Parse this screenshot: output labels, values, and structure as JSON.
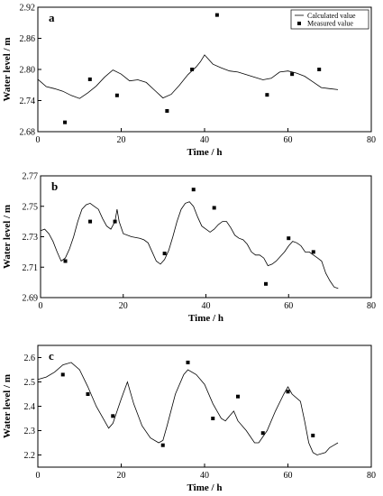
{
  "chart_data": [
    {
      "type": "line",
      "panel_label": "a",
      "xlabel": "Time / h",
      "ylabel": "Water level / m",
      "xlim": [
        0,
        80
      ],
      "ylim": [
        2.68,
        2.92
      ],
      "x_ticks": [
        "0",
        "20",
        "40",
        "60",
        "80"
      ],
      "y_ticks": [
        "2.68",
        "2.74",
        "2.80",
        "2.86",
        "2.92"
      ],
      "legend": {
        "position": "top-right",
        "entries": [
          "Calculated value",
          "Measured value"
        ]
      },
      "series": [
        {
          "name": "Calculated value",
          "style": "line",
          "x": [
            0,
            2,
            4,
            6,
            8,
            10,
            12,
            14,
            16,
            18,
            20,
            22,
            24,
            26,
            28,
            30,
            32,
            34,
            36,
            38,
            39,
            40,
            42,
            44,
            46,
            48,
            50,
            52,
            54,
            56,
            58,
            60,
            62,
            64,
            66,
            68,
            70,
            72
          ],
          "y": [
            2.781,
            2.767,
            2.763,
            2.758,
            2.75,
            2.744,
            2.755,
            2.768,
            2.785,
            2.799,
            2.791,
            2.778,
            2.78,
            2.775,
            2.76,
            2.745,
            2.752,
            2.77,
            2.79,
            2.805,
            2.815,
            2.828,
            2.81,
            2.803,
            2.797,
            2.795,
            2.79,
            2.785,
            2.78,
            2.783,
            2.795,
            2.797,
            2.793,
            2.787,
            2.776,
            2.765,
            2.763,
            2.761
          ]
        },
        {
          "name": "Measured value",
          "style": "marker",
          "x": [
            6.5,
            12.5,
            19,
            31,
            37,
            43,
            55,
            61,
            67.5
          ],
          "y": [
            2.698,
            2.781,
            2.75,
            2.72,
            2.8,
            2.905,
            2.751,
            2.791,
            2.8
          ]
        }
      ]
    },
    {
      "type": "line",
      "panel_label": "b",
      "xlabel": "Time / h",
      "ylabel": "Water level / m",
      "xlim": [
        0,
        80
      ],
      "ylim": [
        2.69,
        2.77
      ],
      "x_ticks": [
        "0",
        "20",
        "40",
        "60",
        "80"
      ],
      "y_ticks": [
        "2.69",
        "2.71",
        "2.73",
        "2.75",
        "2.77"
      ],
      "series": [
        {
          "name": "Calculated value",
          "style": "line",
          "x": [
            0,
            1,
            2,
            3,
            4,
            5,
            6,
            7,
            8,
            9,
            10,
            11,
            12,
            13,
            14,
            15,
            16,
            17,
            18,
            18.5,
            19,
            20,
            22,
            24,
            25,
            26,
            27,
            28,
            29,
            30,
            31,
            32,
            33,
            34,
            35,
            36,
            37,
            38,
            39,
            40,
            41,
            42,
            43,
            44,
            45,
            46,
            47,
            48,
            49,
            50,
            51,
            52,
            53,
            54,
            55,
            56,
            57,
            58,
            59,
            60,
            61,
            62,
            63,
            64,
            65,
            66,
            67,
            68,
            69,
            70,
            71,
            72
          ],
          "y": [
            2.734,
            2.735,
            2.732,
            2.727,
            2.72,
            2.714,
            2.716,
            2.722,
            2.73,
            2.74,
            2.748,
            2.751,
            2.752,
            2.75,
            2.748,
            2.742,
            2.737,
            2.735,
            2.74,
            2.748,
            2.74,
            2.732,
            2.73,
            2.729,
            2.728,
            2.726,
            2.72,
            2.714,
            2.712,
            2.715,
            2.721,
            2.73,
            2.74,
            2.748,
            2.752,
            2.753,
            2.75,
            2.743,
            2.737,
            2.735,
            2.733,
            2.735,
            2.738,
            2.74,
            2.74,
            2.736,
            2.731,
            2.729,
            2.728,
            2.725,
            2.72,
            2.718,
            2.718,
            2.716,
            2.711,
            2.712,
            2.714,
            2.717,
            2.72,
            2.724,
            2.727,
            2.726,
            2.724,
            2.72,
            2.72,
            2.718,
            2.716,
            2.714,
            2.706,
            2.701,
            2.697,
            2.696
          ]
        },
        {
          "name": "Measured value",
          "style": "marker",
          "x": [
            6,
            12,
            18,
            30,
            37,
            42,
            54.5,
            60,
            66
          ],
          "y": [
            2.714,
            2.74,
            2.74,
            2.719,
            2.761,
            2.749,
            2.699,
            2.729,
            2.72
          ]
        }
      ]
    },
    {
      "type": "line",
      "panel_label": "c",
      "xlabel": "Time / h",
      "ylabel": "Water level / m",
      "xlim": [
        0,
        80
      ],
      "ylim": [
        2.15,
        2.65
      ],
      "x_ticks": [
        "0",
        "20",
        "40",
        "60",
        "80"
      ],
      "y_ticks": [
        "2.2",
        "2.3",
        "2.4",
        "2.5",
        "2.6"
      ],
      "series": [
        {
          "name": "Calculated value",
          "style": "line",
          "x": [
            0,
            2,
            4,
            6,
            8,
            10,
            12,
            14,
            16,
            17,
            18,
            20,
            21.5,
            23,
            25,
            27,
            29,
            30,
            31,
            33,
            35,
            36,
            38,
            40,
            42,
            44,
            45,
            46,
            47,
            48,
            50,
            52,
            53,
            55,
            57,
            59,
            60,
            61,
            63,
            64,
            65,
            66,
            67,
            69,
            70,
            71,
            72
          ],
          "y": [
            2.51,
            2.52,
            2.54,
            2.57,
            2.58,
            2.55,
            2.48,
            2.4,
            2.34,
            2.31,
            2.33,
            2.43,
            2.5,
            2.41,
            2.32,
            2.27,
            2.25,
            2.26,
            2.32,
            2.45,
            2.53,
            2.55,
            2.53,
            2.49,
            2.41,
            2.35,
            2.34,
            2.36,
            2.38,
            2.34,
            2.3,
            2.25,
            2.25,
            2.3,
            2.38,
            2.45,
            2.48,
            2.45,
            2.42,
            2.34,
            2.25,
            2.21,
            2.2,
            2.21,
            2.23,
            2.24,
            2.25
          ]
        },
        {
          "name": "Measured value",
          "style": "marker",
          "x": [
            6,
            12,
            18,
            30,
            36,
            42,
            48,
            54,
            60,
            66
          ],
          "y": [
            2.53,
            2.45,
            2.36,
            2.24,
            2.58,
            2.35,
            2.44,
            2.29,
            2.46,
            2.28
          ]
        }
      ]
    }
  ]
}
